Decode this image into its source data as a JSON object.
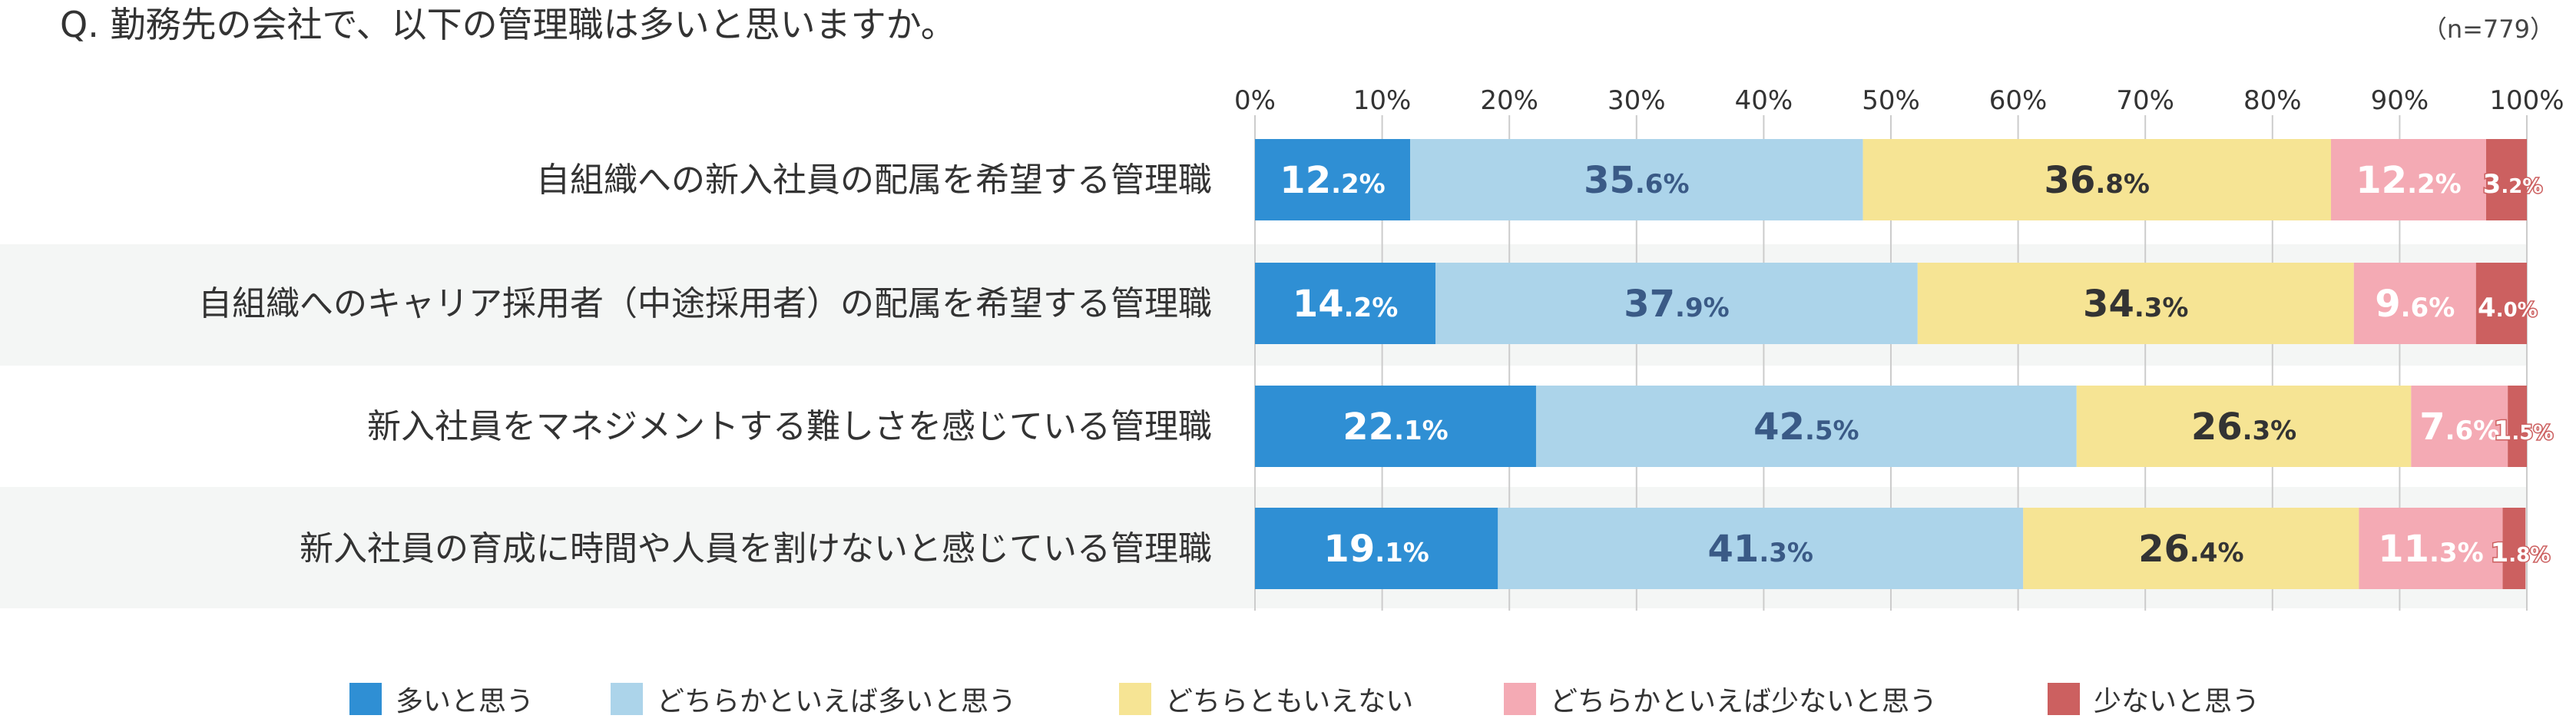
{
  "question": "Q. 勤務先の会社で、以下の管理職は多いと思いますか。",
  "sample_size": "（n=779）",
  "colors": {
    "very_many": "#2f8fd4",
    "somewhat_many": "#acd4ea",
    "neutral": "#f6e494",
    "somewhat_few": "#f4aab4",
    "few": "#cc6060",
    "row_band": "#f4f6f5",
    "grid": "#cccccc"
  },
  "chart_data": {
    "type": "bar",
    "orientation": "horizontal",
    "stacked": true,
    "percent_stacked": true,
    "title": "Q. 勤務先の会社で、以下の管理職は多いと思いますか。",
    "xlim": [
      0,
      100
    ],
    "x_ticks": [
      "0%",
      "10%",
      "20%",
      "30%",
      "40%",
      "50%",
      "60%",
      "70%",
      "80%",
      "90%",
      "100%"
    ],
    "grid": true,
    "legend_position": "bottom",
    "categories": [
      "自組織への新入社員の配属を希望する管理職",
      "自組織へのキャリア採用者（中途採用者）の配属を希望する管理職",
      "新入社員をマネジメントする難しさを感じている管理職",
      "新入社員の育成に時間や人員を割けないと感じている管理職"
    ],
    "series": [
      {
        "name": "多いと思う",
        "values": [
          12.2,
          14.2,
          22.1,
          19.1
        ]
      },
      {
        "name": "どちらかといえば多いと思う",
        "values": [
          35.6,
          37.9,
          42.5,
          41.3
        ]
      },
      {
        "name": "どちらともいえない",
        "values": [
          36.8,
          34.3,
          26.3,
          26.4
        ]
      },
      {
        "name": "どちらかといえば少ないと思う",
        "values": [
          12.2,
          9.6,
          7.6,
          11.3
        ]
      },
      {
        "name": "少ないと思う",
        "values": [
          3.2,
          4.0,
          1.5,
          1.8
        ]
      }
    ]
  }
}
